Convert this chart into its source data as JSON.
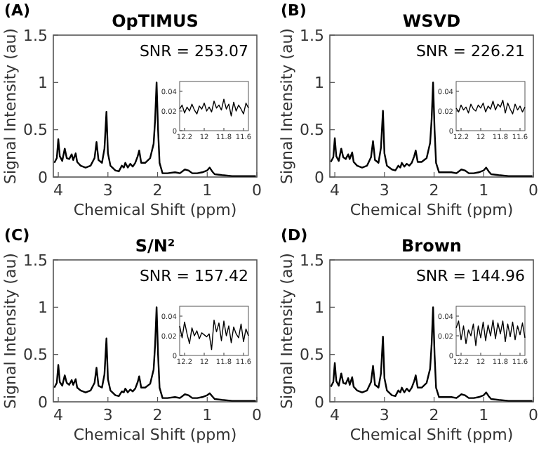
{
  "chart_data": [
    {
      "type": "line",
      "title": "OpTIMUS",
      "xlabel": "Chemical Shift (ppm)",
      "ylabel": "Signal Intensity (au)",
      "annotations": [
        "(A)",
        "SNR = 253.07"
      ],
      "color": "#000000",
      "xlim": [
        4.1,
        0
      ],
      "ylim": [
        0,
        1.5
      ],
      "xticks": [
        4,
        3,
        2,
        1,
        0
      ],
      "yticks": [
        0,
        0.5,
        1,
        1.5
      ],
      "x": [
        4.08,
        4.03,
        4.0,
        3.97,
        3.92,
        3.87,
        3.83,
        3.78,
        3.73,
        3.7,
        3.65,
        3.62,
        3.55,
        3.45,
        3.35,
        3.27,
        3.23,
        3.19,
        3.12,
        3.07,
        3.03,
        3.0,
        2.95,
        2.85,
        2.78,
        2.72,
        2.68,
        2.65,
        2.6,
        2.55,
        2.5,
        2.45,
        2.4,
        2.37,
        2.33,
        2.25,
        2.15,
        2.08,
        2.05,
        2.02,
        1.99,
        1.96,
        1.9,
        1.8,
        1.65,
        1.55,
        1.45,
        1.38,
        1.3,
        1.2,
        1.1,
        1.0,
        0.95,
        0.9,
        0.85,
        0.7,
        0.5,
        0.3,
        0.1,
        0.02
      ],
      "values": [
        0.15,
        0.2,
        0.4,
        0.22,
        0.17,
        0.3,
        0.2,
        0.19,
        0.24,
        0.18,
        0.25,
        0.16,
        0.12,
        0.1,
        0.12,
        0.2,
        0.37,
        0.18,
        0.15,
        0.3,
        0.69,
        0.25,
        0.12,
        0.07,
        0.06,
        0.12,
        0.1,
        0.15,
        0.1,
        0.14,
        0.11,
        0.15,
        0.22,
        0.28,
        0.15,
        0.15,
        0.2,
        0.35,
        0.6,
        1.0,
        0.5,
        0.15,
        0.04,
        0.04,
        0.05,
        0.04,
        0.08,
        0.07,
        0.04,
        0.04,
        0.05,
        0.07,
        0.1,
        0.06,
        0.03,
        0.02,
        0.01,
        0.01,
        0.01,
        0.01
      ]
    },
    {
      "type": "line",
      "color": "#000000",
      "xlim": [
        12.25,
        11.55
      ],
      "ylim": [
        0,
        0.05
      ],
      "xticks": [
        12.2,
        12,
        11.8,
        11.6
      ],
      "yticks": [
        0,
        0.02,
        0.04
      ],
      "x": [
        12.25,
        12.225,
        12.2,
        12.175,
        12.15,
        12.125,
        12.1,
        12.075,
        12.05,
        12.025,
        12.0,
        11.975,
        11.95,
        11.925,
        11.9,
        11.875,
        11.85,
        11.825,
        11.8,
        11.775,
        11.75,
        11.725,
        11.7,
        11.675,
        11.65,
        11.625,
        11.6,
        11.575,
        11.55
      ],
      "values": [
        0.022,
        0.026,
        0.018,
        0.024,
        0.02,
        0.027,
        0.021,
        0.017,
        0.025,
        0.022,
        0.028,
        0.02,
        0.024,
        0.019,
        0.03,
        0.023,
        0.026,
        0.021,
        0.032,
        0.022,
        0.027,
        0.015,
        0.029,
        0.02,
        0.026,
        0.022,
        0.017,
        0.028,
        0.023
      ]
    },
    {
      "type": "line",
      "title": "WSVD",
      "xlabel": "Chemical Shift (ppm)",
      "ylabel": "Signal Intensity (au)",
      "annotations": [
        "(B)",
        "SNR = 226.21"
      ],
      "color": "#000000",
      "xlim": [
        4.1,
        0
      ],
      "ylim": [
        0,
        1.5
      ],
      "xticks": [
        4,
        3,
        2,
        1,
        0
      ],
      "yticks": [
        0,
        0.5,
        1,
        1.5
      ],
      "x": [
        4.08,
        4.03,
        4.0,
        3.97,
        3.92,
        3.87,
        3.83,
        3.78,
        3.73,
        3.7,
        3.65,
        3.62,
        3.55,
        3.45,
        3.35,
        3.27,
        3.23,
        3.19,
        3.12,
        3.07,
        3.03,
        3.0,
        2.95,
        2.85,
        2.78,
        2.72,
        2.68,
        2.65,
        2.6,
        2.55,
        2.5,
        2.45,
        2.4,
        2.37,
        2.33,
        2.25,
        2.15,
        2.08,
        2.05,
        2.02,
        1.99,
        1.96,
        1.9,
        1.8,
        1.65,
        1.55,
        1.45,
        1.38,
        1.3,
        1.2,
        1.1,
        1.0,
        0.95,
        0.9,
        0.85,
        0.7,
        0.5,
        0.3,
        0.1,
        0.02
      ],
      "values": [
        0.16,
        0.21,
        0.41,
        0.22,
        0.17,
        0.3,
        0.21,
        0.19,
        0.24,
        0.19,
        0.26,
        0.16,
        0.12,
        0.1,
        0.12,
        0.21,
        0.38,
        0.18,
        0.15,
        0.31,
        0.7,
        0.25,
        0.12,
        0.08,
        0.07,
        0.12,
        0.1,
        0.15,
        0.11,
        0.14,
        0.12,
        0.15,
        0.22,
        0.28,
        0.16,
        0.16,
        0.2,
        0.36,
        0.6,
        1.0,
        0.5,
        0.15,
        0.05,
        0.05,
        0.05,
        0.04,
        0.08,
        0.07,
        0.04,
        0.04,
        0.05,
        0.07,
        0.1,
        0.06,
        0.03,
        0.02,
        0.01,
        0.01,
        0.01,
        0.01
      ]
    },
    {
      "type": "line",
      "color": "#000000",
      "xlim": [
        12.25,
        11.55
      ],
      "ylim": [
        0,
        0.05
      ],
      "xticks": [
        12.2,
        12,
        11.8,
        11.6
      ],
      "yticks": [
        0,
        0.02,
        0.04
      ],
      "x": [
        12.25,
        12.225,
        12.2,
        12.175,
        12.15,
        12.125,
        12.1,
        12.075,
        12.05,
        12.025,
        12.0,
        11.975,
        11.95,
        11.925,
        11.9,
        11.875,
        11.85,
        11.825,
        11.8,
        11.775,
        11.75,
        11.725,
        11.7,
        11.675,
        11.65,
        11.625,
        11.6,
        11.575,
        11.55
      ],
      "values": [
        0.023,
        0.019,
        0.026,
        0.021,
        0.024,
        0.018,
        0.027,
        0.022,
        0.02,
        0.026,
        0.023,
        0.028,
        0.019,
        0.025,
        0.022,
        0.03,
        0.021,
        0.027,
        0.024,
        0.031,
        0.018,
        0.028,
        0.022,
        0.017,
        0.027,
        0.021,
        0.025,
        0.019,
        0.024
      ]
    },
    {
      "type": "line",
      "title": "S/N²",
      "xlabel": "Chemical Shift (ppm)",
      "ylabel": "Signal Intensity (au)",
      "annotations": [
        "(C)",
        "SNR = 157.42"
      ],
      "color": "#000000",
      "xlim": [
        4.1,
        0
      ],
      "ylim": [
        0,
        1.5
      ],
      "xticks": [
        4,
        3,
        2,
        1,
        0
      ],
      "yticks": [
        0,
        0.5,
        1,
        1.5
      ],
      "x": [
        4.08,
        4.03,
        4.0,
        3.97,
        3.92,
        3.87,
        3.83,
        3.78,
        3.73,
        3.7,
        3.65,
        3.62,
        3.55,
        3.45,
        3.35,
        3.27,
        3.23,
        3.19,
        3.12,
        3.07,
        3.03,
        3.0,
        2.95,
        2.85,
        2.78,
        2.72,
        2.68,
        2.65,
        2.6,
        2.55,
        2.5,
        2.45,
        2.4,
        2.37,
        2.33,
        2.25,
        2.15,
        2.08,
        2.05,
        2.02,
        1.99,
        1.96,
        1.9,
        1.8,
        1.65,
        1.55,
        1.45,
        1.38,
        1.3,
        1.2,
        1.1,
        1.0,
        0.95,
        0.9,
        0.85,
        0.7,
        0.5,
        0.3,
        0.1,
        0.02
      ],
      "values": [
        0.15,
        0.2,
        0.39,
        0.21,
        0.17,
        0.28,
        0.2,
        0.18,
        0.23,
        0.18,
        0.24,
        0.15,
        0.12,
        0.1,
        0.12,
        0.2,
        0.36,
        0.17,
        0.15,
        0.29,
        0.67,
        0.24,
        0.12,
        0.07,
        0.06,
        0.11,
        0.1,
        0.14,
        0.1,
        0.13,
        0.11,
        0.14,
        0.21,
        0.27,
        0.15,
        0.15,
        0.19,
        0.34,
        0.6,
        1.0,
        0.5,
        0.15,
        0.04,
        0.04,
        0.05,
        0.04,
        0.08,
        0.07,
        0.04,
        0.04,
        0.05,
        0.07,
        0.09,
        0.06,
        0.03,
        0.02,
        0.01,
        0.01,
        0.01,
        0.01
      ]
    },
    {
      "type": "line",
      "color": "#000000",
      "xlim": [
        12.25,
        11.55
      ],
      "ylim": [
        0,
        0.05
      ],
      "xticks": [
        12.2,
        12,
        11.8,
        11.6
      ],
      "yticks": [
        0,
        0.02,
        0.04
      ],
      "x": [
        12.25,
        12.225,
        12.2,
        12.175,
        12.15,
        12.125,
        12.1,
        12.075,
        12.05,
        12.025,
        12.0,
        11.975,
        11.95,
        11.925,
        11.9,
        11.875,
        11.85,
        11.825,
        11.8,
        11.775,
        11.75,
        11.725,
        11.7,
        11.675,
        11.65,
        11.625,
        11.6,
        11.575,
        11.55
      ],
      "values": [
        0.03,
        0.018,
        0.034,
        0.022,
        0.012,
        0.028,
        0.02,
        0.025,
        0.017,
        0.023,
        0.021,
        0.019,
        0.022,
        0.006,
        0.036,
        0.024,
        0.033,
        0.015,
        0.035,
        0.02,
        0.03,
        0.013,
        0.029,
        0.022,
        0.018,
        0.032,
        0.014,
        0.027,
        0.02
      ]
    },
    {
      "type": "line",
      "title": "Brown",
      "xlabel": "Chemical Shift (ppm)",
      "ylabel": "Signal Intensity (au)",
      "annotations": [
        "(D)",
        "SNR = 144.96"
      ],
      "color": "#000000",
      "xlim": [
        4.1,
        0
      ],
      "ylim": [
        0,
        1.5
      ],
      "xticks": [
        4,
        3,
        2,
        1,
        0
      ],
      "yticks": [
        0,
        0.5,
        1,
        1.5
      ],
      "x": [
        4.08,
        4.03,
        4.0,
        3.97,
        3.92,
        3.87,
        3.83,
        3.78,
        3.73,
        3.7,
        3.65,
        3.62,
        3.55,
        3.45,
        3.35,
        3.27,
        3.23,
        3.19,
        3.12,
        3.07,
        3.03,
        3.0,
        2.95,
        2.85,
        2.78,
        2.72,
        2.68,
        2.65,
        2.6,
        2.55,
        2.5,
        2.45,
        2.4,
        2.37,
        2.33,
        2.25,
        2.15,
        2.08,
        2.05,
        2.02,
        1.99,
        1.96,
        1.9,
        1.8,
        1.65,
        1.55,
        1.45,
        1.38,
        1.3,
        1.2,
        1.1,
        1.0,
        0.95,
        0.9,
        0.85,
        0.7,
        0.5,
        0.3,
        0.1,
        0.02
      ],
      "values": [
        0.16,
        0.21,
        0.41,
        0.22,
        0.17,
        0.3,
        0.2,
        0.19,
        0.25,
        0.18,
        0.26,
        0.16,
        0.12,
        0.1,
        0.12,
        0.21,
        0.38,
        0.18,
        0.15,
        0.3,
        0.69,
        0.25,
        0.12,
        0.07,
        0.06,
        0.12,
        0.1,
        0.15,
        0.1,
        0.14,
        0.11,
        0.15,
        0.22,
        0.28,
        0.15,
        0.15,
        0.2,
        0.35,
        0.6,
        1.0,
        0.5,
        0.15,
        0.05,
        0.05,
        0.05,
        0.04,
        0.08,
        0.07,
        0.04,
        0.04,
        0.05,
        0.07,
        0.1,
        0.06,
        0.03,
        0.02,
        0.01,
        0.01,
        0.01,
        0.01
      ]
    },
    {
      "type": "line",
      "color": "#000000",
      "xlim": [
        12.25,
        11.55
      ],
      "ylim": [
        0,
        0.05
      ],
      "xticks": [
        12.2,
        12,
        11.8,
        11.6
      ],
      "yticks": [
        0,
        0.02,
        0.04
      ],
      "x": [
        12.25,
        12.225,
        12.2,
        12.175,
        12.15,
        12.125,
        12.1,
        12.075,
        12.05,
        12.025,
        12.0,
        11.975,
        11.95,
        11.925,
        11.9,
        11.875,
        11.85,
        11.825,
        11.8,
        11.775,
        11.75,
        11.725,
        11.7,
        11.675,
        11.65,
        11.625,
        11.6,
        11.575,
        11.55
      ],
      "values": [
        0.028,
        0.035,
        0.016,
        0.03,
        0.012,
        0.026,
        0.02,
        0.032,
        0.01,
        0.03,
        0.018,
        0.034,
        0.015,
        0.031,
        0.02,
        0.036,
        0.017,
        0.033,
        0.022,
        0.035,
        0.014,
        0.032,
        0.019,
        0.034,
        0.016,
        0.03,
        0.021,
        0.033,
        0.018
      ]
    }
  ]
}
